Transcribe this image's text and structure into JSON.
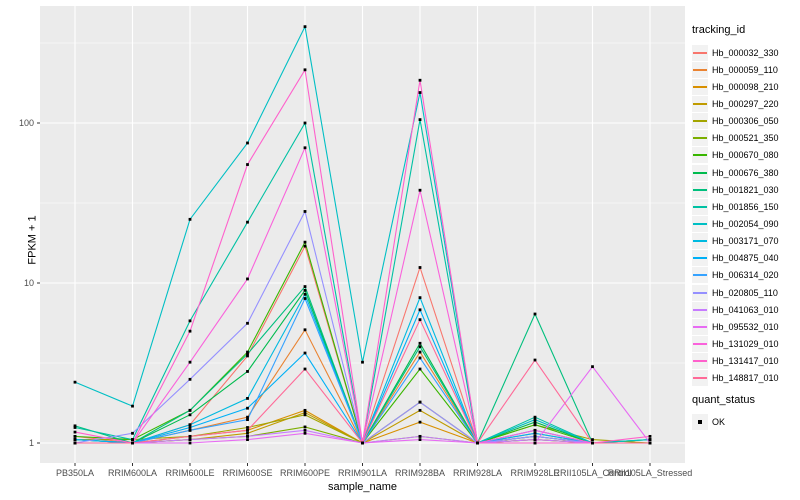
{
  "chart_data": {
    "type": "line",
    "title": "",
    "xlabel": "sample_name",
    "ylabel": "FPKM + 1",
    "y_scale": "log10",
    "ylim": [
      0.75,
      540
    ],
    "y_ticks": [
      1,
      10,
      100
    ],
    "grid": "on",
    "legend_position": "right",
    "legend_title": "tracking_id",
    "panel_bg": "#EBEBEB",
    "grid_color": "#FFFFFF",
    "tick_text_color": "#4D4D4D",
    "marker_color": "#000000",
    "categories": [
      "PB350LA",
      "RRIM600LA",
      "RRIM600LE",
      "RRIM600SE",
      "RRIM600PE",
      "RRIM901LA",
      "RRIM928BA",
      "RRIM928LA",
      "RRIM928LE",
      "RRII105LA_Control",
      "RRII105LA_Stressed"
    ],
    "series": [
      {
        "name": "Hb_000032_330",
        "color": "#F8766D",
        "values": [
          1.1,
          1.0,
          1.3,
          3.5,
          17.0,
          1.0,
          12.5,
          1.0,
          1.1,
          1.0,
          1.0
        ]
      },
      {
        "name": "Hb_000059_110",
        "color": "#EA8331",
        "values": [
          1.0,
          1.0,
          1.2,
          1.45,
          5.1,
          1.0,
          3.7,
          1.0,
          1.15,
          1.0,
          1.0
        ]
      },
      {
        "name": "Hb_000098_210",
        "color": "#D89000",
        "values": [
          1.05,
          1.0,
          1.1,
          1.2,
          1.6,
          1.0,
          1.35,
          1.0,
          1.05,
          1.0,
          1.0
        ]
      },
      {
        "name": "Hb_000297_220",
        "color": "#C09B00",
        "values": [
          1.0,
          1.0,
          1.05,
          1.15,
          1.55,
          1.0,
          1.6,
          1.0,
          1.1,
          1.0,
          1.0
        ]
      },
      {
        "name": "Hb_000306_050",
        "color": "#A3A500",
        "values": [
          1.05,
          1.05,
          1.1,
          1.25,
          1.5,
          1.0,
          1.8,
          1.0,
          1.3,
          1.05,
          1.0
        ]
      },
      {
        "name": "Hb_000521_350",
        "color": "#7CAE00",
        "values": [
          1.0,
          1.0,
          1.05,
          1.1,
          1.26,
          1.0,
          1.1,
          1.0,
          1.05,
          1.0,
          1.05
        ]
      },
      {
        "name": "Hb_000670_080",
        "color": "#39B600",
        "values": [
          1.1,
          1.05,
          1.6,
          3.7,
          18.0,
          1.0,
          2.9,
          1.0,
          1.3,
          1.0,
          1.0
        ]
      },
      {
        "name": "Hb_000676_380",
        "color": "#00BB4E",
        "values": [
          1.05,
          1.0,
          1.5,
          2.8,
          9.0,
          1.0,
          4.2,
          1.0,
          1.35,
          1.0,
          1.0
        ]
      },
      {
        "name": "Hb_001821_030",
        "color": "#00BF7D",
        "values": [
          1.28,
          1.0,
          1.6,
          3.6,
          9.5,
          1.0,
          4.0,
          1.0,
          6.4,
          1.0,
          1.0
        ]
      },
      {
        "name": "Hb_001856_150",
        "color": "#00C1A3",
        "values": [
          1.25,
          1.05,
          5.8,
          24.0,
          100,
          1.0,
          105,
          1.0,
          1.45,
          1.0,
          1.05
        ]
      },
      {
        "name": "Hb_002054_090",
        "color": "#00BFC4",
        "values": [
          2.4,
          1.7,
          25.0,
          75.0,
          400,
          3.2,
          155,
          1.0,
          1.4,
          1.0,
          1.05
        ]
      },
      {
        "name": "Hb_003171_070",
        "color": "#00BAE0",
        "values": [
          1.05,
          1.0,
          1.3,
          1.9,
          8.5,
          1.0,
          8.1,
          1.0,
          1.2,
          1.0,
          1.0
        ]
      },
      {
        "name": "Hb_004875_040",
        "color": "#00B0F6",
        "values": [
          1.05,
          1.0,
          1.25,
          1.65,
          3.65,
          1.0,
          6.8,
          1.0,
          1.15,
          1.0,
          1.0
        ]
      },
      {
        "name": "Hb_006314_020",
        "color": "#35A2FF",
        "values": [
          1.0,
          1.0,
          1.2,
          1.4,
          8.0,
          1.0,
          3.4,
          1.0,
          1.1,
          1.0,
          1.0
        ]
      },
      {
        "name": "Hb_020805_110",
        "color": "#9590FF",
        "values": [
          1.0,
          1.15,
          2.5,
          5.6,
          28.0,
          1.0,
          1.8,
          1.0,
          1.1,
          1.0,
          1.0
        ]
      },
      {
        "name": "Hb_041063_010",
        "color": "#C77CFF",
        "values": [
          1.0,
          1.0,
          1.05,
          1.1,
          1.2,
          1.0,
          1.1,
          1.0,
          1.05,
          1.0,
          1.0
        ]
      },
      {
        "name": "Hb_095532_010",
        "color": "#E76BF3",
        "values": [
          1.0,
          1.0,
          1.0,
          1.05,
          1.15,
          1.0,
          1.05,
          1.0,
          1.0,
          3.0,
          1.0
        ]
      },
      {
        "name": "Hb_131029_010",
        "color": "#FA62DB",
        "values": [
          1.0,
          1.0,
          3.2,
          10.6,
          70.0,
          1.0,
          38.0,
          1.0,
          1.2,
          1.0,
          1.0
        ]
      },
      {
        "name": "Hb_131417_010",
        "color": "#FF61CC",
        "values": [
          1.17,
          1.0,
          5.0,
          55.0,
          215,
          1.0,
          185,
          1.0,
          1.0,
          1.0,
          1.1
        ]
      },
      {
        "name": "Hb_148817_010",
        "color": "#FF6A98",
        "values": [
          1.0,
          1.0,
          1.1,
          1.2,
          2.9,
          1.0,
          5.9,
          1.0,
          3.3,
          1.0,
          1.0
        ]
      }
    ],
    "quant_legend": {
      "title": "quant_status",
      "items": [
        {
          "label": "OK",
          "marker": "black-square"
        }
      ]
    }
  }
}
